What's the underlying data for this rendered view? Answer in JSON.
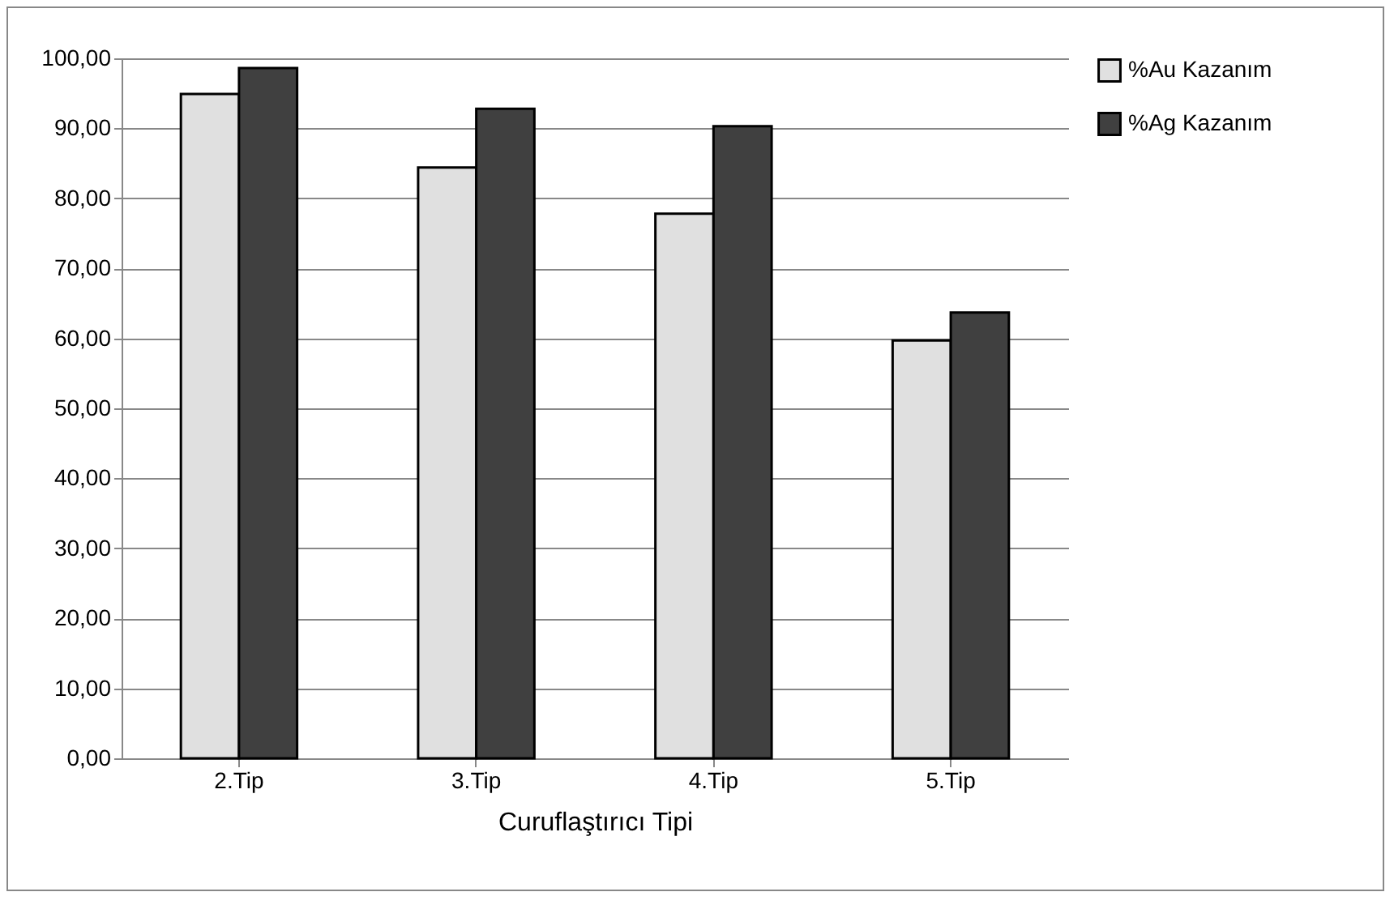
{
  "chart_data": {
    "type": "bar",
    "xlabel": "Curuflaştırıcı Tipi",
    "categories": [
      "2.Tip",
      "3.Tip",
      "4.Tip",
      "5.Tip"
    ],
    "series": [
      {
        "name": "%Au Kazanım",
        "color": "#e0e0e0",
        "values": [
          94.9,
          84.4,
          77.8,
          59.7
        ]
      },
      {
        "name": "%Ag Kazanım",
        "color": "#404040",
        "values": [
          98.6,
          92.8,
          90.3,
          63.7
        ]
      }
    ],
    "ylim": [
      0,
      100
    ],
    "yticks": [
      {
        "value": 0,
        "label": "0,00"
      },
      {
        "value": 10,
        "label": "10,00"
      },
      {
        "value": 20,
        "label": "20,00"
      },
      {
        "value": 30,
        "label": "30,00"
      },
      {
        "value": 40,
        "label": "40,00"
      },
      {
        "value": 50,
        "label": "50,00"
      },
      {
        "value": 60,
        "label": "60,00"
      },
      {
        "value": 70,
        "label": "70,00"
      },
      {
        "value": 80,
        "label": "80,00"
      },
      {
        "value": 90,
        "label": "90,00"
      },
      {
        "value": 100,
        "label": "100,00"
      }
    ],
    "grid": "y",
    "legend": "right"
  }
}
